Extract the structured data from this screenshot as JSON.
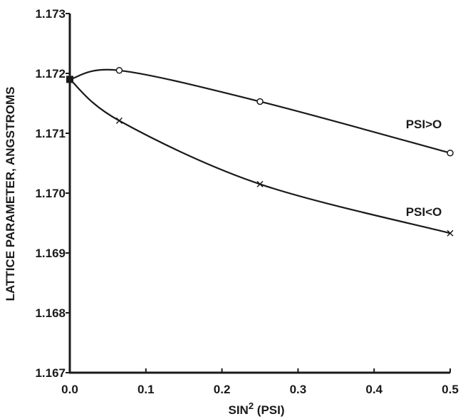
{
  "chart_data": {
    "type": "line",
    "title": "",
    "xlabel": "SIN2 (PSI)",
    "xlabel_main": "SIN",
    "xlabel_sup": "2",
    "xlabel_tail": " (PSI)",
    "ylabel": "LATTICE PARAMETER, ANGSTROMS",
    "xlim": [
      0.0,
      0.5
    ],
    "ylim": [
      1.167,
      1.173
    ],
    "grid": false,
    "x_ticks": [
      0.0,
      0.1,
      0.2,
      0.3,
      0.4,
      0.5
    ],
    "x_tick_labels": [
      "0.0",
      "0.1",
      "0.2",
      "0.3",
      "0.4",
      "0.5"
    ],
    "y_ticks": [
      1.167,
      1.168,
      1.169,
      1.17,
      1.171,
      1.172,
      1.173
    ],
    "y_tick_labels": [
      "1.167",
      "1.168",
      "1.169",
      "1.170",
      "1.171",
      "1.172",
      "1.173"
    ],
    "origin_point": {
      "x": 0.0,
      "y": 1.1719,
      "marker": "square"
    },
    "series": [
      {
        "name": "PSI>O",
        "marker": "circle",
        "x": [
          0.0,
          0.065,
          0.25,
          0.5
        ],
        "y": [
          1.1719,
          1.17205,
          1.17153,
          1.17067
        ]
      },
      {
        "name": "PSI<O",
        "marker": "x",
        "x": [
          0.0,
          0.065,
          0.25,
          0.5
        ],
        "y": [
          1.1719,
          1.17121,
          1.17015,
          1.16933
        ]
      }
    ]
  }
}
